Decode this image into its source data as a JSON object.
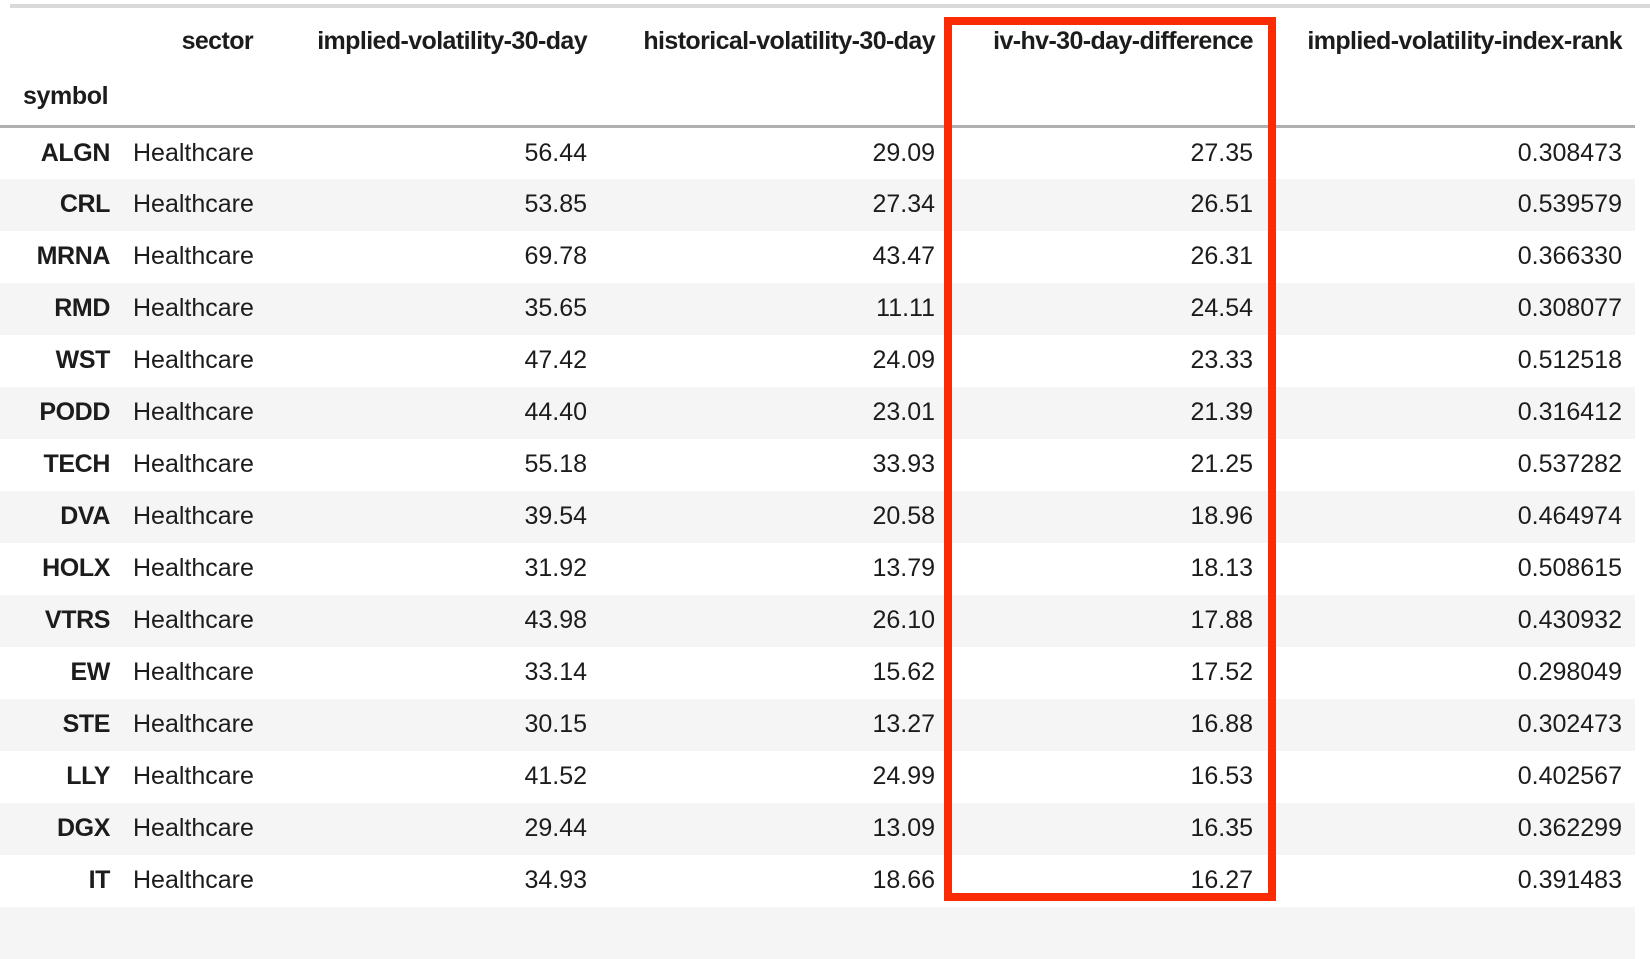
{
  "table": {
    "index_header": "symbol",
    "columns": [
      "sector",
      "implied-volatility-30-day",
      "historical-volatility-30-day",
      "iv-hv-30-day-difference",
      "implied-volatility-index-rank"
    ],
    "rows": [
      {
        "symbol": "ALGN",
        "cells": [
          "Healthcare",
          "56.44",
          "29.09",
          "27.35",
          "0.308473"
        ]
      },
      {
        "symbol": "CRL",
        "cells": [
          "Healthcare",
          "53.85",
          "27.34",
          "26.51",
          "0.539579"
        ]
      },
      {
        "symbol": "MRNA",
        "cells": [
          "Healthcare",
          "69.78",
          "43.47",
          "26.31",
          "0.366330"
        ]
      },
      {
        "symbol": "RMD",
        "cells": [
          "Healthcare",
          "35.65",
          "11.11",
          "24.54",
          "0.308077"
        ]
      },
      {
        "symbol": "WST",
        "cells": [
          "Healthcare",
          "47.42",
          "24.09",
          "23.33",
          "0.512518"
        ]
      },
      {
        "symbol": "PODD",
        "cells": [
          "Healthcare",
          "44.40",
          "23.01",
          "21.39",
          "0.316412"
        ]
      },
      {
        "symbol": "TECH",
        "cells": [
          "Healthcare",
          "55.18",
          "33.93",
          "21.25",
          "0.537282"
        ]
      },
      {
        "symbol": "DVA",
        "cells": [
          "Healthcare",
          "39.54",
          "20.58",
          "18.96",
          "0.464974"
        ]
      },
      {
        "symbol": "HOLX",
        "cells": [
          "Healthcare",
          "31.92",
          "13.79",
          "18.13",
          "0.508615"
        ]
      },
      {
        "symbol": "VTRS",
        "cells": [
          "Healthcare",
          "43.98",
          "26.10",
          "17.88",
          "0.430932"
        ]
      },
      {
        "symbol": "EW",
        "cells": [
          "Healthcare",
          "33.14",
          "15.62",
          "17.52",
          "0.298049"
        ]
      },
      {
        "symbol": "STE",
        "cells": [
          "Healthcare",
          "30.15",
          "13.27",
          "16.88",
          "0.302473"
        ]
      },
      {
        "symbol": "LLY",
        "cells": [
          "Healthcare",
          "41.52",
          "24.99",
          "16.53",
          "0.402567"
        ]
      },
      {
        "symbol": "DGX",
        "cells": [
          "Healthcare",
          "29.44",
          "13.09",
          "16.35",
          "0.362299"
        ]
      },
      {
        "symbol": "IT",
        "cells": [
          "Healthcare",
          "34.93",
          "18.66",
          "16.27",
          "0.391483"
        ]
      }
    ]
  },
  "annotation": {
    "highlighted_column": "iv-hv-30-day-difference",
    "box_color": "#fa2b05"
  },
  "colors": {
    "row_stripe": "#f5f5f5",
    "header_separator": "#b0b0b0",
    "top_line": "#d9d9d9",
    "text": "#1c1c1c",
    "background": "#ffffff"
  }
}
